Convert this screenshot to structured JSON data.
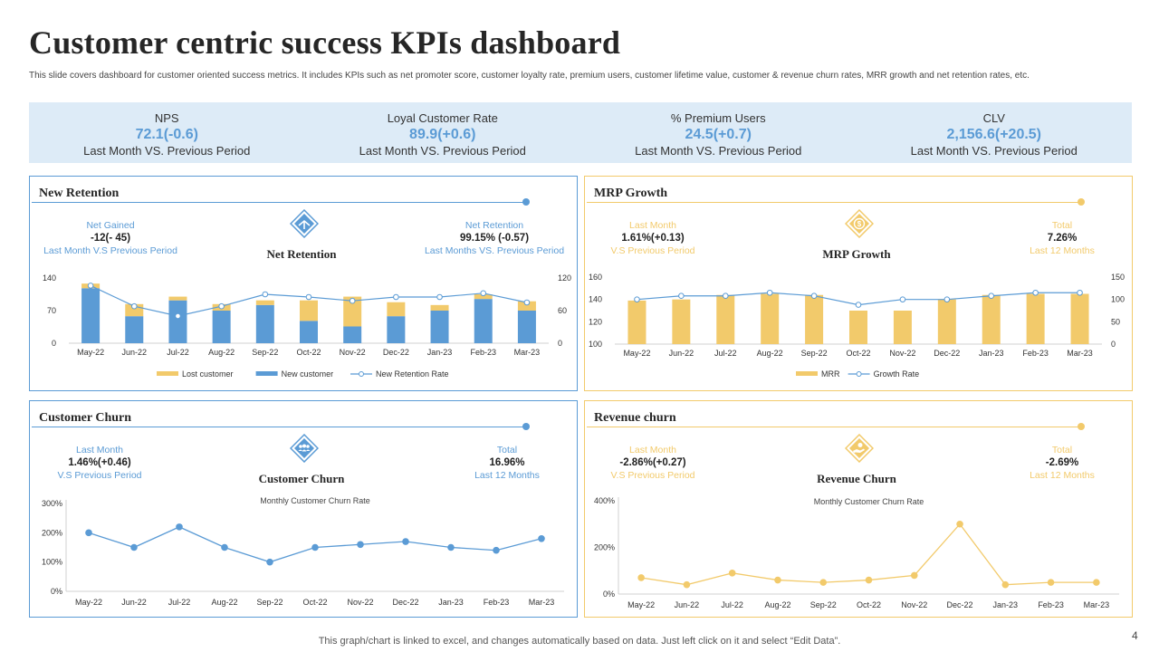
{
  "header": {
    "title": "Customer centric success KPIs dashboard",
    "subtitle": "This slide covers dashboard for customer oriented success metrics. It includes KPIs  such as net promoter score, customer loyalty rate, premium users, customer lifetime value, customer & revenue churn rates, MRR  growth and net retention rates, etc."
  },
  "kpis": [
    {
      "label": "NPS",
      "value": "72.1(-0.6)",
      "sub": "Last Month VS. Previous Period"
    },
    {
      "label": "Loyal Customer Rate",
      "value": "89.9(+0.6)",
      "sub": "Last Month VS. Previous Period"
    },
    {
      "label": "% Premium Users",
      "value": "24.5(+0.7)",
      "sub": "Last Month VS. Previous Period"
    },
    {
      "label": "CLV",
      "value": "2,156.6(+20.5)",
      "sub": "Last Month VS. Previous Period"
    }
  ],
  "panels": {
    "retention": {
      "title": "New Retention",
      "center_name": "Net Retention",
      "left": {
        "top": "Net Gained",
        "value": "-12(- 45)",
        "bottom": "Last Month  V.S Previous Period"
      },
      "right": {
        "top": "Net Retention",
        "value": "99.15% (-0.57)",
        "bottom": "Last Months VS. Previous Period"
      }
    },
    "mrp": {
      "title": "MRP Growth",
      "center_name": "MRP Growth",
      "left": {
        "top": "Last Month",
        "value": "1.61%(+0.13)",
        "bottom": "V.S Previous Period"
      },
      "right": {
        "top": "Total",
        "value": "7.26%",
        "bottom": "Last 12 Months"
      }
    },
    "churn": {
      "title": "Customer Churn",
      "center_name": "Customer Churn",
      "left": {
        "top": "Last Month",
        "value": "1.46%(+0.46)",
        "bottom": "V.S Previous Period"
      },
      "right": {
        "top": "Total",
        "value": "16.96%",
        "bottom": "Last 12 Months"
      }
    },
    "revenue": {
      "title": "Revenue churn",
      "center_name": "Revenue Churn",
      "left": {
        "top": "Last Month",
        "value": "-2.86%(+0.27)",
        "bottom": "V.S Previous Period"
      },
      "right": {
        "top": "Total",
        "value": "-2.69%",
        "bottom": "Last 12 Months"
      }
    }
  },
  "colors": {
    "blue": "#5b9bd5",
    "gold": "#f2ca6b",
    "band": "#ddebf7"
  },
  "chart_data": [
    {
      "id": "retention",
      "type": "bar",
      "categories": [
        "May-22",
        "Jun-22",
        "Jul-22",
        "Aug-22",
        "Sep-22",
        "Oct-22",
        "Nov-22",
        "Dec-22",
        "Jan-23",
        "Feb-23",
        "Mar-23"
      ],
      "series": [
        {
          "name": "New customer",
          "axis": "left",
          "stack": true,
          "values": [
            118,
            58,
            92,
            70,
            82,
            48,
            36,
            58,
            70,
            95,
            70
          ]
        },
        {
          "name": "Lost customer",
          "axis": "left",
          "stack": true,
          "values": [
            10,
            26,
            8,
            14,
            10,
            44,
            64,
            30,
            12,
            10,
            20
          ]
        },
        {
          "name": "New Retention  Rate",
          "axis": "right",
          "type": "line",
          "values": [
            106,
            68,
            50,
            68,
            90,
            85,
            78,
            85,
            85,
            92,
            75
          ]
        }
      ],
      "legend": [
        "Lost customer",
        "New customer",
        "New Retention  Rate"
      ],
      "ylim_left": [
        0,
        140
      ],
      "yticks_left": [
        0,
        70,
        140
      ],
      "ylim_right": [
        0,
        120
      ],
      "yticks_right": [
        0,
        60,
        120
      ]
    },
    {
      "id": "mrp",
      "type": "bar",
      "categories": [
        "May-22",
        "Jun-22",
        "Jul-22",
        "Aug-22",
        "Sep-22",
        "Oct-22",
        "Nov-22",
        "Dec-22",
        "Jan-23",
        "Feb-23",
        "Mar-23"
      ],
      "series": [
        {
          "name": "MRR",
          "axis": "left",
          "values": [
            139,
            140,
            144,
            145,
            144,
            130,
            130,
            140,
            144,
            145,
            145
          ]
        },
        {
          "name": "Growth Rate",
          "axis": "right",
          "type": "line",
          "values": [
            100,
            108,
            108,
            115,
            108,
            88,
            100,
            100,
            108,
            115,
            115
          ]
        }
      ],
      "legend": [
        "MRR",
        "Growth Rate"
      ],
      "ylim_left": [
        100,
        160
      ],
      "yticks_left": [
        100,
        120,
        140,
        160
      ],
      "ylim_right": [
        0,
        150
      ],
      "yticks_right": [
        0,
        50,
        100,
        150
      ]
    },
    {
      "id": "churn",
      "type": "line",
      "title": "Monthly Customer Churn Rate",
      "categories": [
        "May-22",
        "Jun-22",
        "Jul-22",
        "Aug-22",
        "Sep-22",
        "Oct-22",
        "Nov-22",
        "Dec-22",
        "Jan-23",
        "Feb-23",
        "Mar-23"
      ],
      "values": [
        200,
        150,
        220,
        150,
        100,
        150,
        160,
        170,
        150,
        140,
        180
      ],
      "ylim": [
        0,
        300
      ],
      "yticks": [
        "0%",
        "100%",
        "200%",
        "300%"
      ],
      "ytick_values": [
        0,
        100,
        200,
        300
      ]
    },
    {
      "id": "revenue",
      "type": "line",
      "title": "Monthly Customer Churn Rate",
      "categories": [
        "May-22",
        "Jun-22",
        "Jul-22",
        "Aug-22",
        "Sep-22",
        "Oct-22",
        "Nov-22",
        "Dec-22",
        "Jan-23",
        "Feb-23",
        "Mar-23"
      ],
      "values": [
        70,
        40,
        90,
        60,
        50,
        60,
        80,
        300,
        40,
        50,
        50
      ],
      "ylim": [
        0,
        400
      ],
      "yticks": [
        "0%",
        "200%",
        "400%"
      ],
      "ytick_values": [
        0,
        200,
        400
      ]
    }
  ],
  "footer": {
    "note": "This graph/chart is linked to excel,  and changes automatically based on data. Just left click on it and select “Edit Data”.",
    "page": "4"
  }
}
